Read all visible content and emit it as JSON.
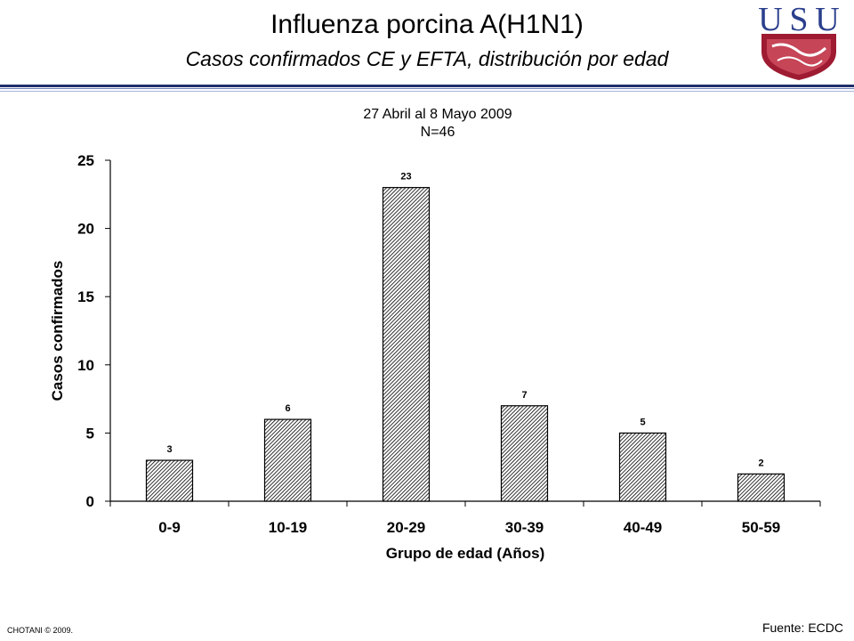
{
  "slide": {
    "title": "Influenza porcina A(H1N1)",
    "subtitle": "Casos confirmados CE y EFTA, distribución por edad",
    "logo_letters": [
      "U",
      "S",
      "U"
    ],
    "footer_left": "CHOTANI © 2009.",
    "footer_right": "Fuente: ECDC"
  },
  "chart_data": {
    "type": "bar",
    "subtitle_lines": [
      "27 Abril al 8 Mayo 2009",
      "N=46"
    ],
    "categories": [
      "0-9",
      "10-19",
      "20-29",
      "30-39",
      "40-49",
      "50-59"
    ],
    "values": [
      3,
      6,
      23,
      7,
      5,
      2
    ],
    "xlabel": "Grupo de edad (Años)",
    "ylabel": "Casos confirmados",
    "ylim": [
      0,
      25
    ],
    "yticks": [
      0,
      5,
      10,
      15,
      20,
      25
    ],
    "grid": false,
    "data_labels": true,
    "bar_fill": "hatched-black-white"
  },
  "colors": {
    "rule": "#1f2e6b",
    "logo_blue": "#2b3f8c",
    "logo_red": "#9e1b32"
  }
}
